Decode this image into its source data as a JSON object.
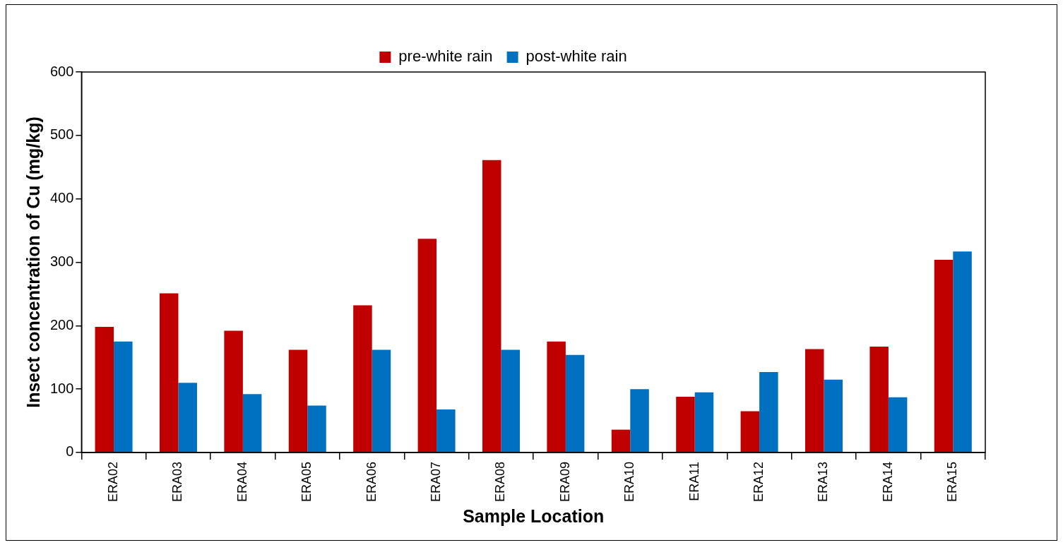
{
  "chart_data": {
    "type": "bar",
    "xlabel": "Sample Location",
    "ylabel": "Insect concentration of Cu (mg/kg)",
    "categories": [
      "ERA02",
      "ERA03",
      "ERA04",
      "ERA05",
      "ERA06",
      "ERA07",
      "ERA08",
      "ERA09",
      "ERA10",
      "ERA11",
      "ERA12",
      "ERA13",
      "ERA14",
      "ERA15"
    ],
    "series": [
      {
        "name": "pre-white rain",
        "color": "#c00000",
        "values": [
          198,
          251,
          192,
          162,
          232,
          337,
          461,
          175,
          36,
          88,
          65,
          163,
          167,
          304
        ]
      },
      {
        "name": "post-white rain",
        "color": "#0070c0",
        "values": [
          175,
          110,
          92,
          74,
          162,
          68,
          162,
          154,
          100,
          95,
          127,
          115,
          87,
          317
        ]
      }
    ],
    "ylim": [
      0,
      600
    ],
    "yticks": [
      0,
      100,
      200,
      300,
      400,
      500,
      600
    ],
    "grid": false,
    "legend": "top"
  }
}
